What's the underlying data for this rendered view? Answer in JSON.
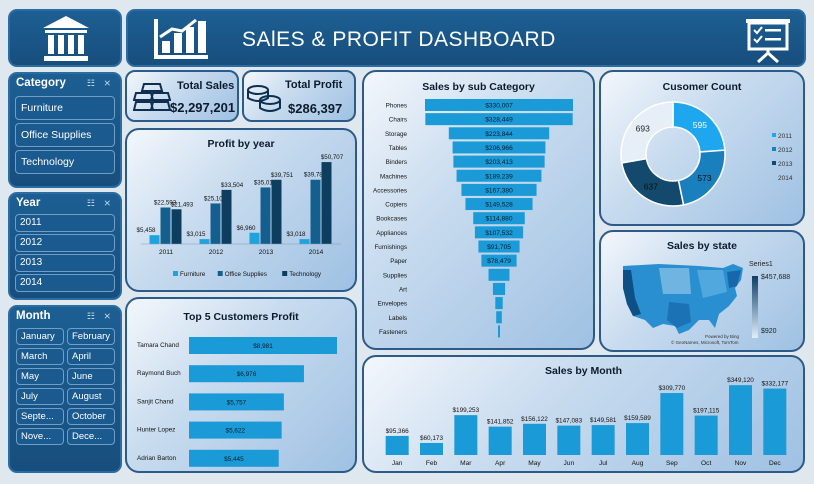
{
  "header": {
    "title": "SAlES & PROFIT DASHBOARD"
  },
  "icons": {
    "bank": "bank-icon",
    "chart": "bar-chart-growth-icon",
    "presentation": "presentation-board-icon",
    "gold": "gold-bars-icon",
    "coins": "coins-icon"
  },
  "kpi": {
    "sales_label": "Total Sales",
    "sales_value": "$2,297,201",
    "profit_label": "Total Profit",
    "profit_value": "$286,397"
  },
  "slicers": {
    "category": {
      "title": "Category",
      "items": [
        "Furniture",
        "Office Supplies",
        "Technology"
      ]
    },
    "year": {
      "title": "Year",
      "items": [
        "2011",
        "2012",
        "2013",
        "2014"
      ]
    },
    "month": {
      "title": "Month",
      "items": [
        "January",
        "February",
        "March",
        "April",
        "May",
        "June",
        "July",
        "August",
        "Septe...",
        "October",
        "Nove...",
        "Dece..."
      ]
    }
  },
  "charts": {
    "profit_by_year": {
      "type": "bar",
      "title": "Profit by year",
      "categories": [
        "2011",
        "2012",
        "2013",
        "2014"
      ],
      "series": [
        {
          "name": "Furniture",
          "color": "#1ea3dc",
          "values": [
            5458,
            3015,
            6960,
            3018
          ],
          "labels": [
            "$5,458",
            "$3,015",
            "$6,960",
            "$3,018"
          ]
        },
        {
          "name": "Office Supplies",
          "color": "#155f8f",
          "values": [
            22593,
            25106,
            35016,
            39782
          ],
          "labels": [
            "$22,593",
            "$25,106",
            "$35,016",
            "$39,782"
          ]
        },
        {
          "name": "Technology",
          "color": "#0d3e5f",
          "values": [
            21493,
            33504,
            39751,
            50707
          ],
          "labels": [
            "$21,493",
            "$33,504",
            "$39,751",
            "$50,707"
          ]
        }
      ],
      "ylim": [
        0,
        52000
      ]
    },
    "top_customers": {
      "type": "bar",
      "title": "Top 5 Customers Profit",
      "categories": [
        "Tamara Chand",
        "Raymond Buch",
        "Sanjit Chand",
        "Hunter Lopez",
        "Adrian Barton"
      ],
      "values": [
        8981,
        6976,
        5757,
        5622,
        5445
      ],
      "labels": [
        "$8,981",
        "$6,976",
        "$5,757",
        "$5,622",
        "$5,445"
      ],
      "color": "#1a9ad6"
    },
    "sub_category": {
      "type": "bar",
      "title": "Sales by sub Category",
      "categories": [
        "Phones",
        "Chairs",
        "Storage",
        "Tables",
        "Binders",
        "Machines",
        "Accessories",
        "Copiers",
        "Bookcases",
        "Appliances",
        "Furnishings",
        "Paper",
        "Supplies",
        "Art",
        "Envelopes",
        "Labels",
        "Fasteners"
      ],
      "values": [
        330007,
        328449,
        223844,
        206966,
        203413,
        189239,
        167380,
        149528,
        114880,
        107532,
        91705,
        78479,
        46674,
        27119,
        16476,
        12486,
        3024
      ],
      "labels": [
        "$330,007",
        "$328,449",
        "$223,844",
        "$206,966",
        "$203,413",
        "$189,239",
        "$167,380",
        "$149,528",
        "$114,880",
        "$107,532",
        "$91,705",
        "$78,479",
        "",
        "",
        "",
        "",
        ""
      ],
      "color": "#1a9ad6"
    },
    "customer_count": {
      "type": "pie",
      "title": "Cusomer Count",
      "categories": [
        "2011",
        "2012",
        "2013",
        "2014"
      ],
      "values": [
        595,
        573,
        637,
        693
      ],
      "colors": [
        "#1ea7ef",
        "#1980bd",
        "#12496d",
        "#e6eef7"
      ]
    },
    "sales_by_state": {
      "title": "Sales by state",
      "legend_title": "Series1",
      "max_label": "$457,688",
      "min_label": "$920",
      "attribution_1": "Powered by Bing",
      "attribution_2": "© GeoNames, Microsoft, TomTom"
    },
    "sales_by_month": {
      "type": "bar",
      "title": "Sales by Month",
      "categories": [
        "Jan",
        "Feb",
        "Mar",
        "Apr",
        "May",
        "Jun",
        "Jul",
        "Aug",
        "Sep",
        "Oct",
        "Nov",
        "Dec"
      ],
      "values": [
        95366,
        60173,
        199253,
        141852,
        156122,
        147083,
        149581,
        159589,
        309770,
        197115,
        349120,
        332177
      ],
      "labels": [
        "$95,366",
        "$60,173",
        "$199,253",
        "$141,852",
        "$156,122",
        "$147,083",
        "$149,581",
        "$159,589",
        "$309,770",
        "$197,115",
        "$349,120",
        "$332,177"
      ],
      "color": "#1a9ad6",
      "ylim": [
        0,
        360000
      ]
    }
  }
}
